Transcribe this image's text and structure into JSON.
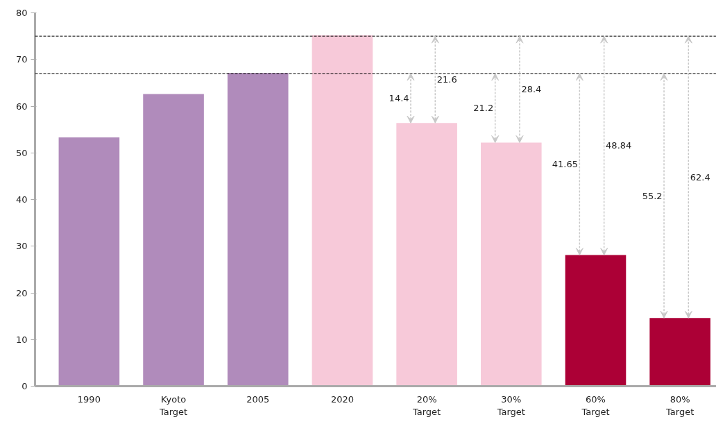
{
  "chart_data": {
    "type": "bar",
    "categories": [
      "1990",
      "Kyoto\nTarget",
      "2005",
      "2020",
      "20%\nTarget",
      "30%\nTarget",
      "60%\nTarget",
      "80%\nTarget"
    ],
    "values": [
      53.3,
      62.6,
      67.1,
      75.2,
      56.4,
      52.2,
      28.1,
      14.6
    ],
    "colors": [
      "#b08bbb",
      "#b08bbb",
      "#b08bbb",
      "#f7c9d9",
      "#f7c9d9",
      "#f7c9d9",
      "#ac0036",
      "#ac0036"
    ],
    "ylim": [
      0,
      80
    ],
    "yticks": [
      0,
      10,
      20,
      30,
      40,
      50,
      60,
      70,
      80
    ],
    "grid": false,
    "ref_lines": [
      {
        "axis": "y",
        "value": 75,
        "label": null,
        "line_style": "dashed",
        "color": "#000000"
      },
      {
        "axis": "y",
        "value": 67,
        "label": null,
        "line_style": "dashed",
        "color": "#000000"
      }
    ],
    "annotations": [
      "14.4",
      "21.6",
      "21.2",
      "28.4",
      "41.65",
      "48.84",
      "55.2",
      "62.4"
    ]
  }
}
